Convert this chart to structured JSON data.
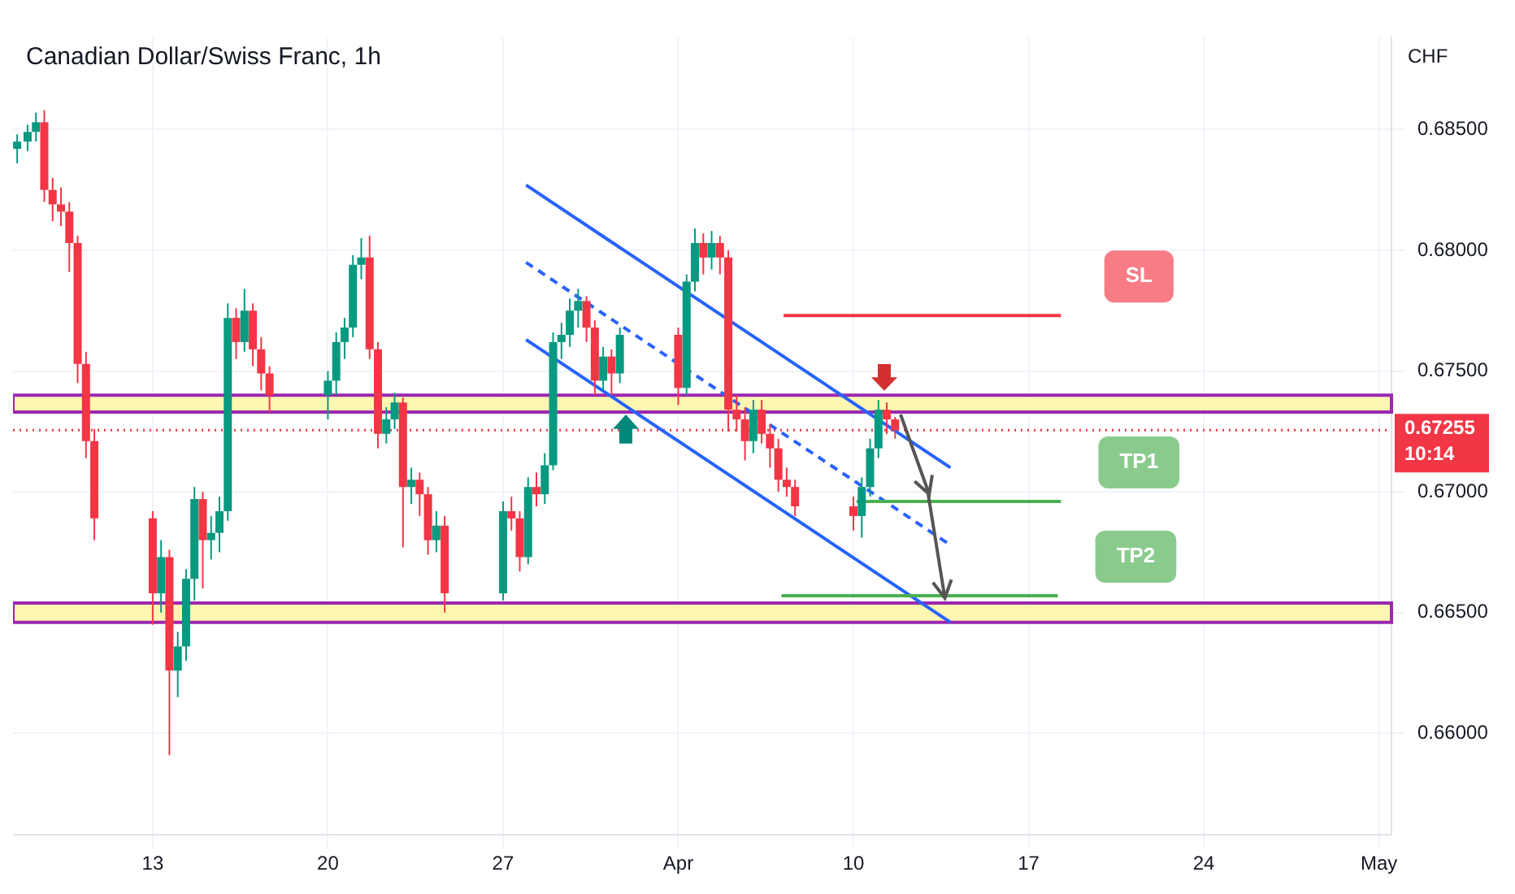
{
  "chart_data": {
    "type": "candlestick",
    "title": "Canadian Dollar/Swiss Franc, 1h",
    "ylabel": "CHF",
    "x": [
      "--03-07T14:00",
      "--03-08T00:00",
      "--03-08T08:00",
      "--03-08T16:00",
      "--03-09T00:00",
      "--03-09T08:00",
      "--03-09T16:00",
      "--03-10T00:00",
      "--03-10T08:00",
      "--03-10T16:00",
      "--03-13T00:00",
      "--03-13T08:00",
      "--03-13T16:00",
      "--03-14T00:00",
      "--03-14T08:00",
      "--03-14T16:00",
      "--03-15T00:00",
      "--03-15T08:00",
      "--03-15T16:00",
      "--03-16T00:00",
      "--03-16T08:00",
      "--03-16T16:00",
      "--03-17T00:00",
      "--03-17T08:00",
      "--03-17T16:00",
      "--03-20T00:00",
      "--03-20T08:00",
      "--03-20T16:00",
      "--03-21T00:00",
      "--03-21T08:00",
      "--03-21T16:00",
      "--03-22T00:00",
      "--03-22T08:00",
      "--03-22T16:00",
      "--03-23T00:00",
      "--03-23T08:00",
      "--03-23T16:00",
      "--03-24T00:00",
      "--03-24T08:00",
      "--03-24T16:00",
      "--03-27T00:00",
      "--03-27T08:00",
      "--03-27T16:00",
      "--03-28T00:00",
      "--03-28T08:00",
      "--03-28T16:00",
      "--03-29T00:00",
      "--03-29T08:00",
      "--03-29T16:00",
      "--03-30T00:00",
      "--03-30T08:00",
      "--03-30T16:00",
      "--03-31T00:00",
      "--03-31T08:00",
      "--03-31T16:00",
      "--04-03T00:00",
      "--04-03T08:00",
      "--04-03T16:00",
      "--04-04T00:00",
      "--04-04T08:00",
      "--04-04T16:00",
      "--04-05T00:00",
      "--04-05T08:00",
      "--04-05T16:00",
      "--04-06T00:00",
      "--04-06T08:00",
      "--04-06T16:00",
      "--04-07T00:00",
      "--04-07T08:00",
      "--04-07T16:00",
      "--04-10T00:00",
      "--04-10T08:00",
      "--04-10T16:00",
      "--04-11T00:00",
      "--04-11T08:00",
      "--04-11T16:00"
    ],
    "ohlc": [
      [
        0.6842,
        0.6848,
        0.6836,
        0.6845
      ],
      [
        0.6845,
        0.6852,
        0.6841,
        0.6849
      ],
      [
        0.6849,
        0.6857,
        0.6845,
        0.6853
      ],
      [
        0.6853,
        0.6858,
        0.682,
        0.6825
      ],
      [
        0.6825,
        0.683,
        0.6812,
        0.6819
      ],
      [
        0.6819,
        0.6826,
        0.681,
        0.6816
      ],
      [
        0.6816,
        0.682,
        0.6791,
        0.6803
      ],
      [
        0.6803,
        0.6806,
        0.6745,
        0.6753
      ],
      [
        0.6753,
        0.6758,
        0.6714,
        0.6721
      ],
      [
        0.6721,
        0.6726,
        0.668,
        0.6689
      ],
      [
        0.6689,
        0.6692,
        0.6645,
        0.6658
      ],
      [
        0.6658,
        0.668,
        0.665,
        0.6673
      ],
      [
        0.6673,
        0.6676,
        0.6591,
        0.6626
      ],
      [
        0.6626,
        0.6642,
        0.6615,
        0.6636
      ],
      [
        0.6636,
        0.6668,
        0.663,
        0.6664
      ],
      [
        0.6664,
        0.6702,
        0.6655,
        0.6697
      ],
      [
        0.6697,
        0.67,
        0.666,
        0.668
      ],
      [
        0.668,
        0.669,
        0.6672,
        0.6683
      ],
      [
        0.6683,
        0.6698,
        0.6675,
        0.6692
      ],
      [
        0.6692,
        0.6778,
        0.6688,
        0.6772
      ],
      [
        0.6772,
        0.6776,
        0.6755,
        0.6762
      ],
      [
        0.6762,
        0.6784,
        0.6758,
        0.6775
      ],
      [
        0.6775,
        0.6778,
        0.6752,
        0.6759
      ],
      [
        0.6759,
        0.6764,
        0.6742,
        0.6749
      ],
      [
        0.6749,
        0.6752,
        0.6733,
        0.674
      ],
      [
        0.674,
        0.675,
        0.673,
        0.6746
      ],
      [
        0.6746,
        0.6766,
        0.674,
        0.6762
      ],
      [
        0.6762,
        0.6772,
        0.6755,
        0.6768
      ],
      [
        0.6768,
        0.6798,
        0.6764,
        0.6794
      ],
      [
        0.6794,
        0.6805,
        0.6788,
        0.6797
      ],
      [
        0.6797,
        0.6806,
        0.6755,
        0.6759
      ],
      [
        0.6759,
        0.6762,
        0.6718,
        0.6724
      ],
      [
        0.6724,
        0.6735,
        0.672,
        0.673
      ],
      [
        0.673,
        0.6741,
        0.6726,
        0.6737
      ],
      [
        0.6737,
        0.6739,
        0.6677,
        0.6702
      ],
      [
        0.6702,
        0.671,
        0.6695,
        0.6705
      ],
      [
        0.6705,
        0.6708,
        0.669,
        0.6699
      ],
      [
        0.6699,
        0.6702,
        0.6674,
        0.668
      ],
      [
        0.668,
        0.6692,
        0.6675,
        0.6686
      ],
      [
        0.6686,
        0.669,
        0.665,
        0.6658
      ],
      [
        0.6658,
        0.6696,
        0.6655,
        0.6692
      ],
      [
        0.6692,
        0.6698,
        0.6684,
        0.6689
      ],
      [
        0.6689,
        0.6692,
        0.6667,
        0.6673
      ],
      [
        0.6673,
        0.6706,
        0.667,
        0.6702
      ],
      [
        0.6702,
        0.6708,
        0.6694,
        0.6699
      ],
      [
        0.6699,
        0.6716,
        0.6695,
        0.6711
      ],
      [
        0.6711,
        0.6766,
        0.6709,
        0.6762
      ],
      [
        0.6762,
        0.677,
        0.6755,
        0.6765
      ],
      [
        0.6765,
        0.678,
        0.676,
        0.6775
      ],
      [
        0.6775,
        0.6784,
        0.6768,
        0.6779
      ],
      [
        0.6779,
        0.6781,
        0.6762,
        0.6768
      ],
      [
        0.6768,
        0.6771,
        0.674,
        0.6746
      ],
      [
        0.6746,
        0.676,
        0.6742,
        0.6756
      ],
      [
        0.6756,
        0.6759,
        0.674,
        0.6749
      ],
      [
        0.6749,
        0.6768,
        0.6745,
        0.6765
      ],
      [
        0.6765,
        0.6768,
        0.6736,
        0.6743
      ],
      [
        0.6743,
        0.679,
        0.674,
        0.6787
      ],
      [
        0.6787,
        0.6809,
        0.6783,
        0.6803
      ],
      [
        0.6803,
        0.6807,
        0.679,
        0.6797
      ],
      [
        0.6797,
        0.6808,
        0.6792,
        0.6803
      ],
      [
        0.6803,
        0.6806,
        0.679,
        0.6797
      ],
      [
        0.6797,
        0.68,
        0.6725,
        0.6734
      ],
      [
        0.6734,
        0.674,
        0.6725,
        0.673
      ],
      [
        0.673,
        0.6735,
        0.6713,
        0.6721
      ],
      [
        0.6721,
        0.6738,
        0.6716,
        0.6734
      ],
      [
        0.6734,
        0.6738,
        0.672,
        0.6724
      ],
      [
        0.6724,
        0.6728,
        0.671,
        0.6718
      ],
      [
        0.6718,
        0.6722,
        0.67,
        0.6705
      ],
      [
        0.6705,
        0.671,
        0.6698,
        0.6702
      ],
      [
        0.6702,
        0.6705,
        0.669,
        0.6694
      ],
      [
        0.6694,
        0.6698,
        0.6684,
        0.669
      ],
      [
        0.669,
        0.6706,
        0.6681,
        0.6702
      ],
      [
        0.6702,
        0.6722,
        0.6698,
        0.6718
      ],
      [
        0.6718,
        0.6738,
        0.6714,
        0.6734
      ],
      [
        0.6734,
        0.6737,
        0.6724,
        0.673
      ],
      [
        0.673,
        0.6731,
        0.6722,
        0.67255
      ]
    ],
    "colors": [
      "#089981",
      "#089981",
      "#089981",
      "#f23645",
      "#f23645",
      "#f23645",
      "#f23645",
      "#f23645",
      "#f23645",
      "#f23645",
      "#f23645",
      "#089981",
      "#f23645",
      "#089981",
      "#089981",
      "#089981",
      "#f23645",
      "#089981",
      "#089981",
      "#089981",
      "#f23645",
      "#089981",
      "#f23645",
      "#f23645",
      "#f23645",
      "#089981",
      "#089981",
      "#089981",
      "#089981",
      "#089981",
      "#f23645",
      "#f23645",
      "#089981",
      "#089981",
      "#f23645",
      "#089981",
      "#f23645",
      "#f23645",
      "#089981",
      "#f23645",
      "#089981",
      "#f23645",
      "#f23645",
      "#089981",
      "#f23645",
      "#089981",
      "#089981",
      "#089981",
      "#089981",
      "#089981",
      "#f23645",
      "#f23645",
      "#089981",
      "#f23645",
      "#089981",
      "#f23645",
      "#089981",
      "#089981",
      "#f23645",
      "#089981",
      "#f23645",
      "#f23645",
      "#f23645",
      "#f23645",
      "#089981",
      "#f23645",
      "#f23645",
      "#f23645",
      "#f23645",
      "#f23645",
      "#f23645",
      "#089981",
      "#089981",
      "#089981",
      "#f23645",
      "#f23645"
    ],
    "series": [
      {
        "type": "line",
        "color": "#f23645",
        "x": [
          "--04-07T05:00",
          "--04-18T07:00"
        ],
        "values": [
          0.6773,
          0.6773
        ]
      },
      {
        "type": "line",
        "color": "#4caf50",
        "x": [
          "--04-10T03:00",
          "--04-18T07:00"
        ],
        "values": [
          0.6696,
          0.6696
        ]
      },
      {
        "type": "line",
        "color": "#4caf50",
        "x": [
          "--04-07T03:00",
          "--04-18T04:00"
        ],
        "values": [
          0.6657,
          0.6657
        ]
      },
      {
        "type": "line",
        "color": "#2962ff",
        "x": [
          "--03-27T22:00",
          "--04-13T21:00"
        ],
        "values": [
          0.6827,
          0.671
        ]
      },
      {
        "type": "line",
        "color": "#2962ff",
        "line_style": "dashed",
        "x": [
          "--03-27T22:00",
          "--04-13T21:00"
        ],
        "values": [
          0.6795,
          0.6678
        ]
      },
      {
        "type": "line",
        "color": "#2962ff",
        "x": [
          "--03-27T22:00",
          "--04-13T21:00"
        ],
        "values": [
          0.6763,
          0.6646
        ]
      }
    ],
    "annotations": [
      "10:14",
      "SL",
      "TP1",
      "TP2"
    ],
    "ref_lines": [
      {
        "axis": "y",
        "value": 0.67255,
        "label": "0.67255",
        "color": "#f23645",
        "line_style": "dotted"
      }
    ],
    "bands": [
      {
        "axis": "y",
        "from": 0.6733,
        "to": 0.674,
        "color": "#fff59d"
      },
      {
        "axis": "y",
        "from": 0.6646,
        "to": 0.6654,
        "color": "#fff59d"
      }
    ],
    "xlim": [
      "--03-07T10:00",
      "--05-01T12:00"
    ],
    "xticks": [
      {
        "value": "--03-13",
        "label": "13"
      },
      {
        "value": "--03-20",
        "label": "20"
      },
      {
        "value": "--03-27",
        "label": "27"
      },
      {
        "value": "--04-03",
        "label": "Apr"
      },
      {
        "value": "--04-10",
        "label": "10"
      },
      {
        "value": "--04-17",
        "label": "17"
      },
      {
        "value": "--04-24",
        "label": "24"
      },
      {
        "value": "--05-01",
        "label": "May"
      }
    ],
    "ylim": [
      0.6558,
      0.6888
    ],
    "yticks": [
      {
        "value": 0.66,
        "label": "0.66000"
      },
      {
        "value": 0.665,
        "label": "0.66500"
      },
      {
        "value": 0.67,
        "label": "0.67000"
      },
      {
        "value": 0.675,
        "label": "0.67500"
      },
      {
        "value": 0.68,
        "label": "0.68000"
      },
      {
        "value": 0.685,
        "label": "0.68500"
      }
    ],
    "grid": true,
    "legend": false,
    "marker": "none"
  }
}
